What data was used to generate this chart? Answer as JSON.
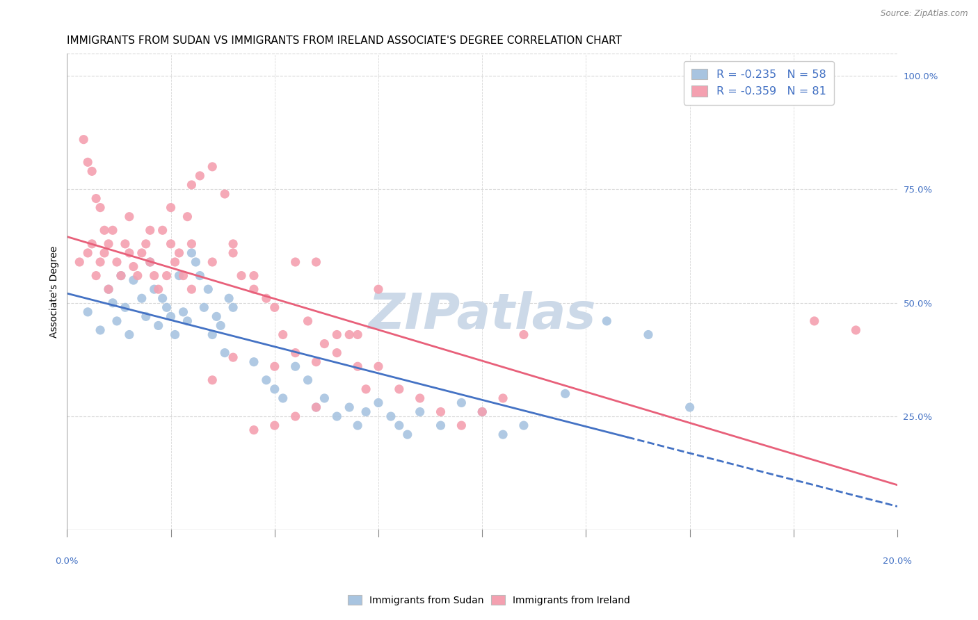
{
  "title": "IMMIGRANTS FROM SUDAN VS IMMIGRANTS FROM IRELAND ASSOCIATE'S DEGREE CORRELATION CHART",
  "source": "Source: ZipAtlas.com",
  "ylabel": "Associate's Degree",
  "sudan_color": "#a8c4e0",
  "ireland_color": "#f4a0b0",
  "sudan_line_color": "#4472c4",
  "ireland_line_color": "#e8607a",
  "sudan_R": -0.235,
  "sudan_N": 58,
  "ireland_R": -0.359,
  "ireland_N": 81,
  "watermark": "ZIPatlas",
  "background_color": "#ffffff",
  "sudan_points": [
    [
      0.5,
      48
    ],
    [
      0.8,
      44
    ],
    [
      1.0,
      53
    ],
    [
      1.1,
      50
    ],
    [
      1.2,
      46
    ],
    [
      1.3,
      56
    ],
    [
      1.4,
      49
    ],
    [
      1.5,
      43
    ],
    [
      1.6,
      55
    ],
    [
      1.8,
      51
    ],
    [
      1.9,
      47
    ],
    [
      2.0,
      59
    ],
    [
      2.1,
      53
    ],
    [
      2.2,
      45
    ],
    [
      2.3,
      51
    ],
    [
      2.4,
      49
    ],
    [
      2.5,
      47
    ],
    [
      2.6,
      43
    ],
    [
      2.7,
      56
    ],
    [
      2.8,
      48
    ],
    [
      2.9,
      46
    ],
    [
      3.0,
      61
    ],
    [
      3.1,
      59
    ],
    [
      3.2,
      56
    ],
    [
      3.3,
      49
    ],
    [
      3.4,
      53
    ],
    [
      3.5,
      43
    ],
    [
      3.6,
      47
    ],
    [
      3.7,
      45
    ],
    [
      3.8,
      39
    ],
    [
      3.9,
      51
    ],
    [
      4.0,
      49
    ],
    [
      4.5,
      37
    ],
    [
      4.8,
      33
    ],
    [
      5.0,
      31
    ],
    [
      5.2,
      29
    ],
    [
      5.5,
      36
    ],
    [
      5.8,
      33
    ],
    [
      6.0,
      27
    ],
    [
      6.2,
      29
    ],
    [
      6.5,
      25
    ],
    [
      6.8,
      27
    ],
    [
      7.0,
      23
    ],
    [
      7.2,
      26
    ],
    [
      7.5,
      28
    ],
    [
      7.8,
      25
    ],
    [
      8.0,
      23
    ],
    [
      8.2,
      21
    ],
    [
      8.5,
      26
    ],
    [
      9.0,
      23
    ],
    [
      9.5,
      28
    ],
    [
      10.0,
      26
    ],
    [
      10.5,
      21
    ],
    [
      11.0,
      23
    ],
    [
      12.0,
      30
    ],
    [
      13.0,
      46
    ],
    [
      14.0,
      43
    ],
    [
      15.0,
      27
    ]
  ],
  "ireland_points": [
    [
      0.3,
      59
    ],
    [
      0.5,
      61
    ],
    [
      0.6,
      63
    ],
    [
      0.7,
      56
    ],
    [
      0.8,
      59
    ],
    [
      0.9,
      61
    ],
    [
      1.0,
      53
    ],
    [
      1.1,
      66
    ],
    [
      1.2,
      59
    ],
    [
      1.3,
      56
    ],
    [
      1.4,
      63
    ],
    [
      1.5,
      61
    ],
    [
      1.6,
      58
    ],
    [
      1.7,
      56
    ],
    [
      1.8,
      61
    ],
    [
      1.9,
      63
    ],
    [
      2.0,
      59
    ],
    [
      2.1,
      56
    ],
    [
      2.2,
      53
    ],
    [
      2.3,
      66
    ],
    [
      2.4,
      56
    ],
    [
      2.5,
      63
    ],
    [
      2.6,
      59
    ],
    [
      2.7,
      61
    ],
    [
      2.8,
      56
    ],
    [
      2.9,
      69
    ],
    [
      3.0,
      63
    ],
    [
      0.4,
      86
    ],
    [
      0.5,
      81
    ],
    [
      0.6,
      79
    ],
    [
      0.7,
      73
    ],
    [
      0.8,
      71
    ],
    [
      0.9,
      66
    ],
    [
      1.0,
      63
    ],
    [
      1.5,
      69
    ],
    [
      2.0,
      66
    ],
    [
      2.5,
      71
    ],
    [
      3.0,
      76
    ],
    [
      3.2,
      78
    ],
    [
      3.5,
      80
    ],
    [
      3.8,
      74
    ],
    [
      4.0,
      63
    ],
    [
      4.2,
      56
    ],
    [
      4.5,
      53
    ],
    [
      4.8,
      51
    ],
    [
      5.0,
      49
    ],
    [
      5.2,
      43
    ],
    [
      5.5,
      39
    ],
    [
      5.8,
      46
    ],
    [
      6.0,
      37
    ],
    [
      6.2,
      41
    ],
    [
      6.5,
      39
    ],
    [
      6.8,
      43
    ],
    [
      7.0,
      36
    ],
    [
      7.2,
      31
    ],
    [
      7.5,
      36
    ],
    [
      8.0,
      31
    ],
    [
      8.5,
      29
    ],
    [
      9.0,
      26
    ],
    [
      9.5,
      23
    ],
    [
      10.0,
      26
    ],
    [
      10.5,
      29
    ],
    [
      11.0,
      43
    ],
    [
      3.5,
      59
    ],
    [
      4.0,
      61
    ],
    [
      4.5,
      56
    ],
    [
      5.5,
      59
    ],
    [
      6.5,
      43
    ],
    [
      7.5,
      53
    ],
    [
      5.0,
      23
    ],
    [
      6.0,
      27
    ],
    [
      7.0,
      43
    ],
    [
      3.0,
      53
    ],
    [
      4.0,
      38
    ],
    [
      5.0,
      36
    ],
    [
      3.5,
      33
    ],
    [
      4.5,
      22
    ],
    [
      5.5,
      25
    ],
    [
      6.0,
      59
    ],
    [
      18.0,
      46
    ],
    [
      19.0,
      44
    ]
  ],
  "xlim": [
    0,
    20
  ],
  "ylim": [
    0,
    105
  ],
  "right_yticks": [
    25,
    50,
    75,
    100
  ],
  "right_yticklabels": [
    "25.0%",
    "50.0%",
    "75.0%",
    "100.0%"
  ],
  "bottom_right_label": "20.0%",
  "grid_color": "#d8d8d8",
  "title_fontsize": 11,
  "axis_label_fontsize": 10,
  "tick_fontsize": 9.5,
  "watermark_color": "#ccd9e8",
  "watermark_fontsize": 52,
  "sudan_dash_start": 13.5,
  "tick_color": "#4472c4"
}
